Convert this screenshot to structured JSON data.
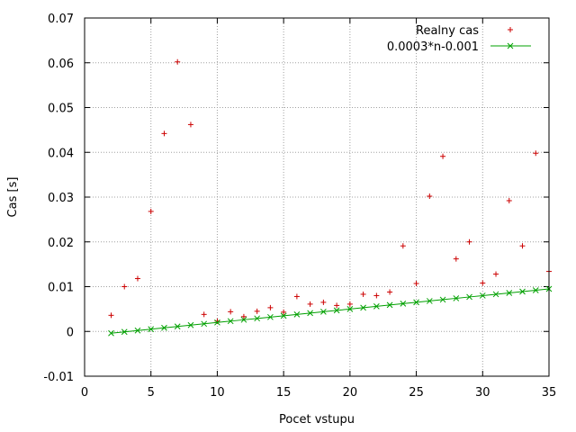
{
  "chart_data": {
    "type": "scatter",
    "title": "",
    "xlabel": "Pocet vstupu",
    "ylabel": "Cas [s]",
    "xlim": [
      0,
      35
    ],
    "ylim": [
      -0.01,
      0.07
    ],
    "grid": true,
    "legend_placement": "top-right",
    "xticks": [
      0,
      5,
      10,
      15,
      20,
      25,
      30,
      35
    ],
    "yticks": [
      -0.01,
      0,
      0.01,
      0.02,
      0.03,
      0.04,
      0.05,
      0.06,
      0.07
    ],
    "xtick_labels": [
      "0",
      "5",
      "10",
      "15",
      "20",
      "25",
      "30",
      "35"
    ],
    "ytick_labels": [
      "-0.01",
      "0",
      "0.01",
      "0.02",
      "0.03",
      "0.04",
      "0.05",
      "0.06",
      "0.07"
    ],
    "series": [
      {
        "name": "Realny cas",
        "marker": "plus",
        "color": "#cc0000",
        "points": [
          [
            2,
            0.0036
          ],
          [
            3,
            0.01
          ],
          [
            4,
            0.0118
          ],
          [
            5,
            0.0268
          ],
          [
            6,
            0.0442
          ],
          [
            7,
            0.0602
          ],
          [
            8,
            0.0462
          ],
          [
            9,
            0.0038
          ],
          [
            10,
            0.0023
          ],
          [
            11,
            0.0044
          ],
          [
            12,
            0.0033
          ],
          [
            13,
            0.0045
          ],
          [
            14,
            0.0053
          ],
          [
            15,
            0.0043
          ],
          [
            16,
            0.0078
          ],
          [
            17,
            0.0061
          ],
          [
            18,
            0.0065
          ],
          [
            19,
            0.0058
          ],
          [
            20,
            0.0061
          ],
          [
            21,
            0.0083
          ],
          [
            22,
            0.008
          ],
          [
            23,
            0.0088
          ],
          [
            24,
            0.0191
          ],
          [
            25,
            0.0107
          ],
          [
            26,
            0.0302
          ],
          [
            27,
            0.0391
          ],
          [
            28,
            0.0162
          ],
          [
            29,
            0.02
          ],
          [
            30,
            0.0108
          ],
          [
            31,
            0.0128
          ],
          [
            32,
            0.0292
          ],
          [
            33,
            0.0191
          ],
          [
            34,
            0.0398
          ],
          [
            35,
            0.0134
          ]
        ]
      },
      {
        "name": "0.0003*n-0.001",
        "marker": "x",
        "color": "#00a000",
        "points": [
          [
            2,
            -0.0004
          ],
          [
            3,
            -0.0001
          ],
          [
            4,
            0.0002
          ],
          [
            5,
            0.0005
          ],
          [
            6,
            0.0008
          ],
          [
            7,
            0.0011
          ],
          [
            8,
            0.0014
          ],
          [
            9,
            0.0017
          ],
          [
            10,
            0.002
          ],
          [
            11,
            0.0023
          ],
          [
            12,
            0.0026
          ],
          [
            13,
            0.0029
          ],
          [
            14,
            0.0032
          ],
          [
            15,
            0.0035
          ],
          [
            16,
            0.0038
          ],
          [
            17,
            0.0041
          ],
          [
            18,
            0.0044
          ],
          [
            19,
            0.0047
          ],
          [
            20,
            0.005
          ],
          [
            21,
            0.0053
          ],
          [
            22,
            0.0056
          ],
          [
            23,
            0.0059
          ],
          [
            24,
            0.0062
          ],
          [
            25,
            0.0065
          ],
          [
            26,
            0.0068
          ],
          [
            27,
            0.0071
          ],
          [
            28,
            0.0074
          ],
          [
            29,
            0.0077
          ],
          [
            30,
            0.008
          ],
          [
            31,
            0.0083
          ],
          [
            32,
            0.0086
          ],
          [
            33,
            0.0089
          ],
          [
            34,
            0.0092
          ],
          [
            35,
            0.0095
          ]
        ]
      }
    ]
  }
}
